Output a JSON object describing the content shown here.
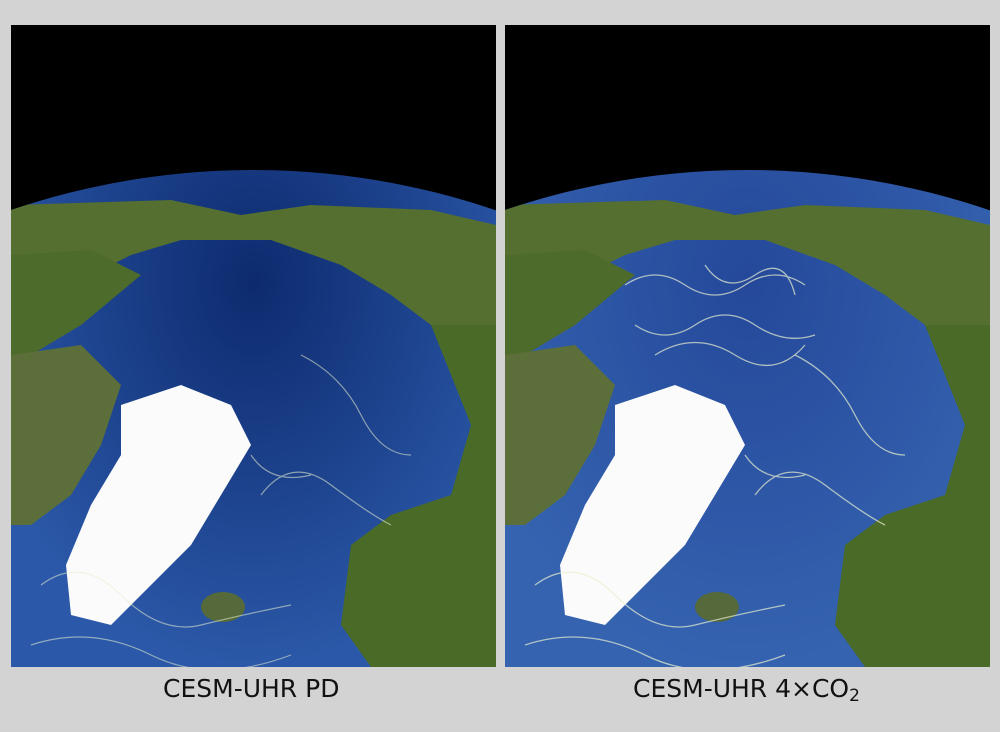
{
  "panels": [
    {
      "label": "CESM-UHR PD",
      "ocean_color": "#1d3f8a",
      "eddy_intensity": "low"
    },
    {
      "label_main": "CESM-UHR 4×CO",
      "label_sub": "2",
      "ocean_color": "#25489a",
      "eddy_intensity": "high"
    }
  ],
  "colors": {
    "background": "#d3d3d3",
    "space": "#000000",
    "land": "#4d6b2a",
    "ice": "#ffffff",
    "eddy": "#e8f0d0"
  }
}
